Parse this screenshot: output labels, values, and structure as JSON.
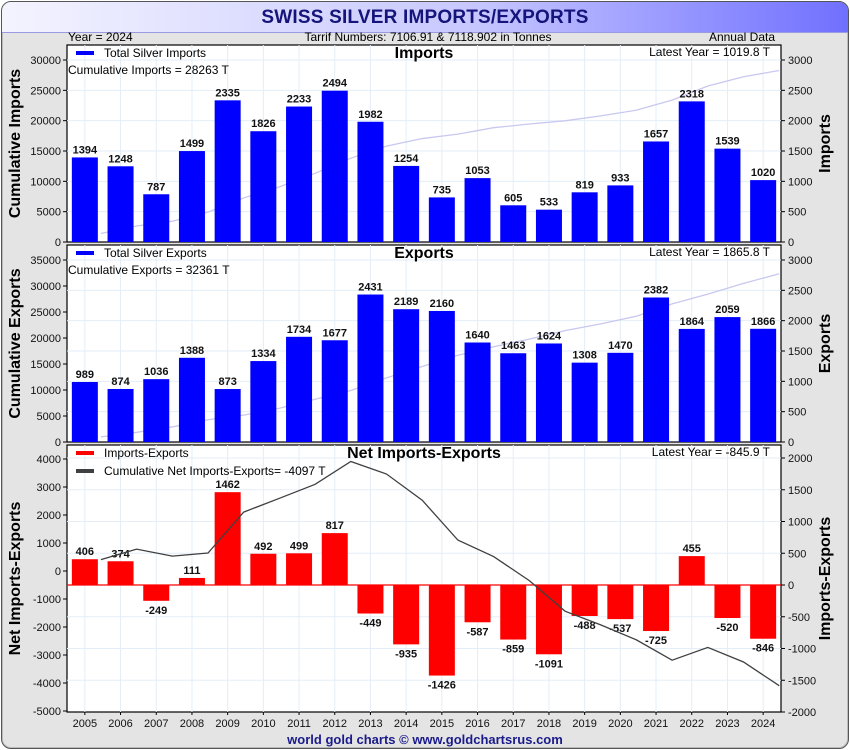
{
  "header": {
    "title": "SWISS SILVER IMPORTS/EXPORTS",
    "year_label": "Year = 2024",
    "tariff_label": "Tarrif Numbers: 7106.91 & 7118.902 in Tonnes",
    "frequency_label": "Annual Data"
  },
  "footer": {
    "credit": "world gold charts © www.goldchartsrus.com"
  },
  "colors": {
    "imports_bar": "#0000ff",
    "exports_bar": "#0000ff",
    "net_bar": "#ff0000",
    "cumulative_line_imports_exports": "#c8c8f0",
    "cumulative_line_net": "#404040",
    "title_text": "#14147a"
  },
  "chart_data": [
    {
      "type": "bar",
      "title": "Imports",
      "legend": [
        {
          "label": "Total Silver Imports",
          "color": "#0000ff"
        }
      ],
      "legend_placement": "top-left",
      "annotations": [
        "Cumulative Imports = 28263 T",
        "Latest Year = 1019.8 T"
      ],
      "categories": [
        "2005",
        "2006",
        "2007",
        "2008",
        "2009",
        "2010",
        "2011",
        "2012",
        "2013",
        "2014",
        "2015",
        "2016",
        "2017",
        "2018",
        "2019",
        "2020",
        "2021",
        "2022",
        "2023",
        "2024"
      ],
      "series": [
        {
          "name": "Total Silver Imports",
          "axis": "right",
          "values": [
            1394,
            1248,
            787,
            1499,
            2335,
            1826,
            2233,
            2494,
            1982,
            1254,
            735,
            1053,
            605,
            533,
            819,
            933,
            1657,
            2318,
            1539,
            1020
          ]
        },
        {
          "name": "Cumulative Imports",
          "axis": "left",
          "type": "line",
          "values": [
            1394,
            2642,
            3429,
            4928,
            7263,
            9089,
            11322,
            13816,
            15798,
            17052,
            17787,
            18840,
            19445,
            19978,
            20797,
            21730,
            23387,
            25705,
            27244,
            28264
          ]
        }
      ],
      "ylabel_left": "Cumulative Imports",
      "ylabel_right": "Imports",
      "yticks_left": [
        "0",
        "5000",
        "10000",
        "15000",
        "20000",
        "25000",
        "30000"
      ],
      "yticks_right": [
        "0",
        "500",
        "1000",
        "1500",
        "2000",
        "2500",
        "3000"
      ],
      "ylim_left": [
        0,
        30000
      ],
      "ylim_right": [
        0,
        3000
      ],
      "grid": true
    },
    {
      "type": "bar",
      "title": "Exports",
      "legend": [
        {
          "label": "Total Silver Exports",
          "color": "#0000ff"
        }
      ],
      "legend_placement": "top-left",
      "annotations": [
        "Cumulative Exports = 32361 T",
        "Latest Year = 1865.8 T"
      ],
      "categories": [
        "2005",
        "2006",
        "2007",
        "2008",
        "2009",
        "2010",
        "2011",
        "2012",
        "2013",
        "2014",
        "2015",
        "2016",
        "2017",
        "2018",
        "2019",
        "2020",
        "2021",
        "2022",
        "2023",
        "2024"
      ],
      "series": [
        {
          "name": "Total Silver Exports",
          "axis": "right",
          "values": [
            989,
            874,
            1036,
            1388,
            873,
            1334,
            1734,
            1677,
            2431,
            2189,
            2160,
            1640,
            1463,
            1624,
            1308,
            1470,
            2382,
            1864,
            2059,
            1866
          ]
        },
        {
          "name": "Cumulative Exports",
          "axis": "left",
          "type": "line",
          "values": [
            989,
            1863,
            2899,
            4287,
            5160,
            6494,
            8228,
            9905,
            12336,
            14525,
            16685,
            18325,
            19788,
            21412,
            22720,
            24190,
            26572,
            28436,
            30495,
            32361
          ]
        }
      ],
      "ylabel_left": "Cumulative Exports",
      "ylabel_right": "Exports",
      "yticks_left": [
        "0",
        "5000",
        "10000",
        "15000",
        "20000",
        "25000",
        "30000",
        "35000"
      ],
      "yticks_right": [
        "0",
        "500",
        "1000",
        "1500",
        "2000",
        "2500",
        "3000"
      ],
      "ylim_left": [
        0,
        35000
      ],
      "ylim_right": [
        0,
        3000
      ],
      "grid": true
    },
    {
      "type": "bar",
      "title": "Net Imports-Exports",
      "legend": [
        {
          "label": "Imports-Exports",
          "color": "#ff0000"
        },
        {
          "label": "Cumulative Net Imports-Exports= -4097 T",
          "color": "#404040"
        }
      ],
      "legend_placement": "top-left",
      "annotations": [
        "Latest Year = -845.9 T"
      ],
      "categories": [
        "2005",
        "2006",
        "2007",
        "2008",
        "2009",
        "2010",
        "2011",
        "2012",
        "2013",
        "2014",
        "2015",
        "2016",
        "2017",
        "2018",
        "2019",
        "2020",
        "2021",
        "2022",
        "2023",
        "2024"
      ],
      "series": [
        {
          "name": "Imports-Exports",
          "axis": "right",
          "values": [
            406,
            374,
            -249,
            111,
            1462,
            492,
            499,
            817,
            -449,
            -935,
            -1426,
            -587,
            -859,
            -1091,
            -488,
            -537,
            -725,
            455,
            -520,
            -846
          ]
        },
        {
          "name": "Cumulative Net Imports-Exports",
          "axis": "left",
          "type": "line",
          "values": [
            406,
            780,
            531,
            642,
            2104,
            2596,
            3095,
            3912,
            3463,
            2528,
            1102,
            515,
            -344,
            -1435,
            -1923,
            -2460,
            -3185,
            -2730,
            -3250,
            -4097
          ]
        }
      ],
      "ylabel_left": "Net Imports-Exports",
      "ylabel_right": "Imports-Exports",
      "yticks_left": [
        "-5000",
        "-4000",
        "-3000",
        "-2000",
        "-1000",
        "0",
        "1000",
        "2000",
        "3000",
        "4000"
      ],
      "yticks_right": [
        "-2000",
        "-1500",
        "-1000",
        "-500",
        "0",
        "500",
        "1000",
        "1500",
        "2000"
      ],
      "ylim_left": [
        -5000,
        4500
      ],
      "ylim_right": [
        -2000,
        2000
      ],
      "xlabel": "",
      "grid": true
    }
  ]
}
